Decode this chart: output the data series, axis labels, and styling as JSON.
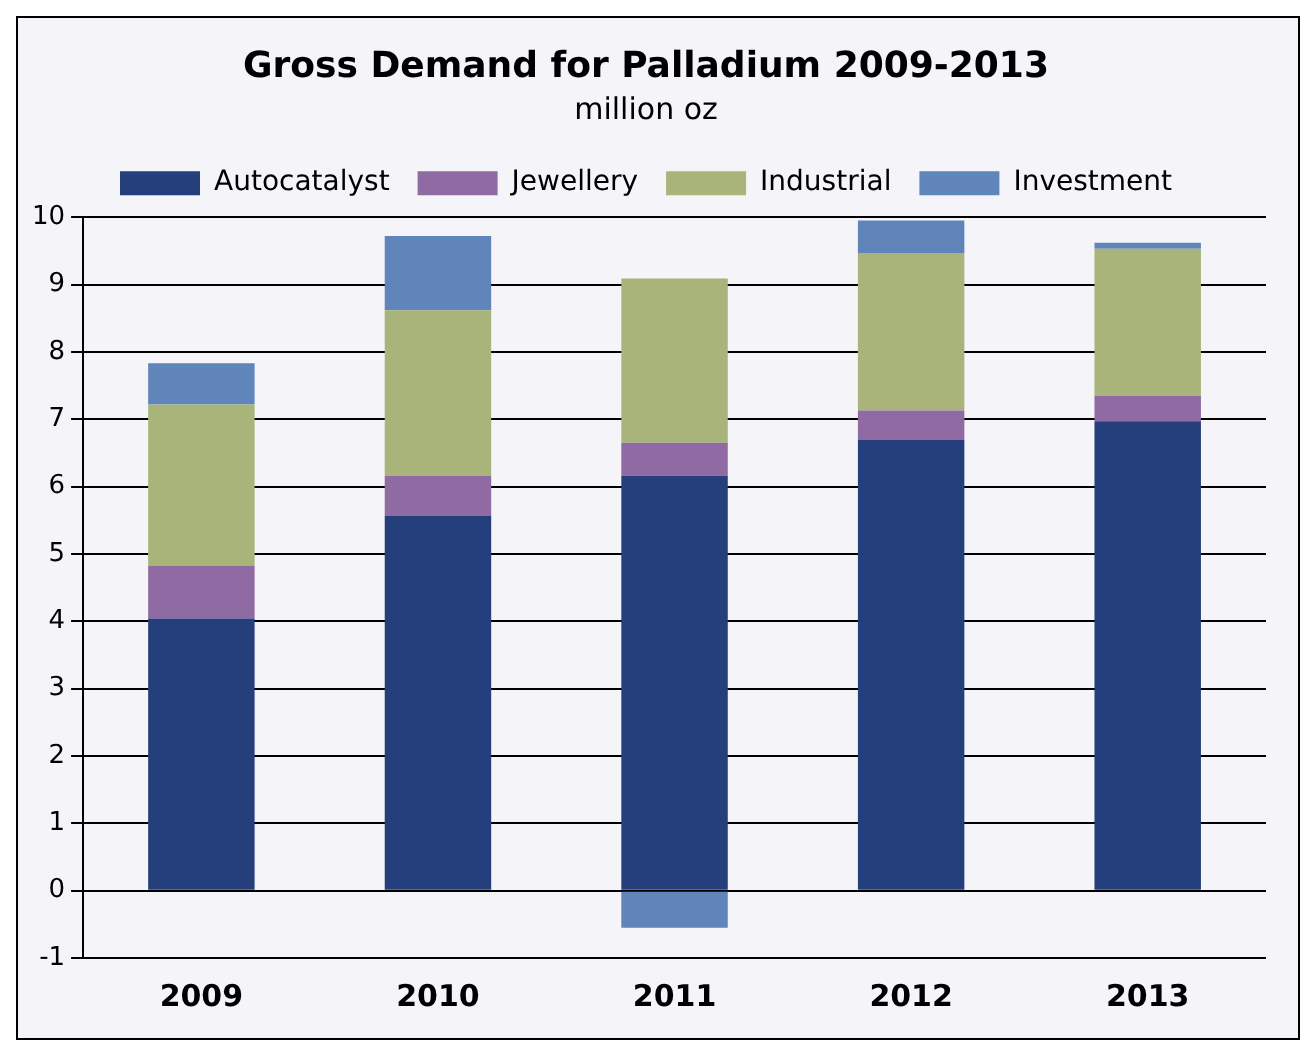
{
  "chart_data": {
    "type": "bar",
    "title": "Gross Demand for Palladium 2009-2013",
    "subtitle": "million oz",
    "categories": [
      "2009",
      "2010",
      "2011",
      "2012",
      "2013"
    ],
    "stacked": true,
    "series": [
      {
        "name": "Autocatalyst",
        "color": "#253f7c",
        "values": [
          4.04,
          5.57,
          6.16,
          6.69,
          6.97
        ]
      },
      {
        "name": "Jewellery",
        "color": "#8f6aa3",
        "values": [
          0.78,
          0.59,
          0.49,
          0.44,
          0.38
        ]
      },
      {
        "name": "Industrial",
        "color": "#a8b479",
        "values": [
          2.4,
          2.46,
          2.44,
          2.34,
          2.18
        ]
      },
      {
        "name": "Investment",
        "color": "#6085bb",
        "values": [
          0.61,
          1.1,
          -0.55,
          0.48,
          0.09
        ]
      }
    ],
    "ylim": [
      -1,
      10
    ],
    "yticks": [
      -1,
      0,
      1,
      2,
      3,
      4,
      5,
      6,
      7,
      8,
      9,
      10
    ],
    "grid": "y",
    "legend": "top"
  }
}
